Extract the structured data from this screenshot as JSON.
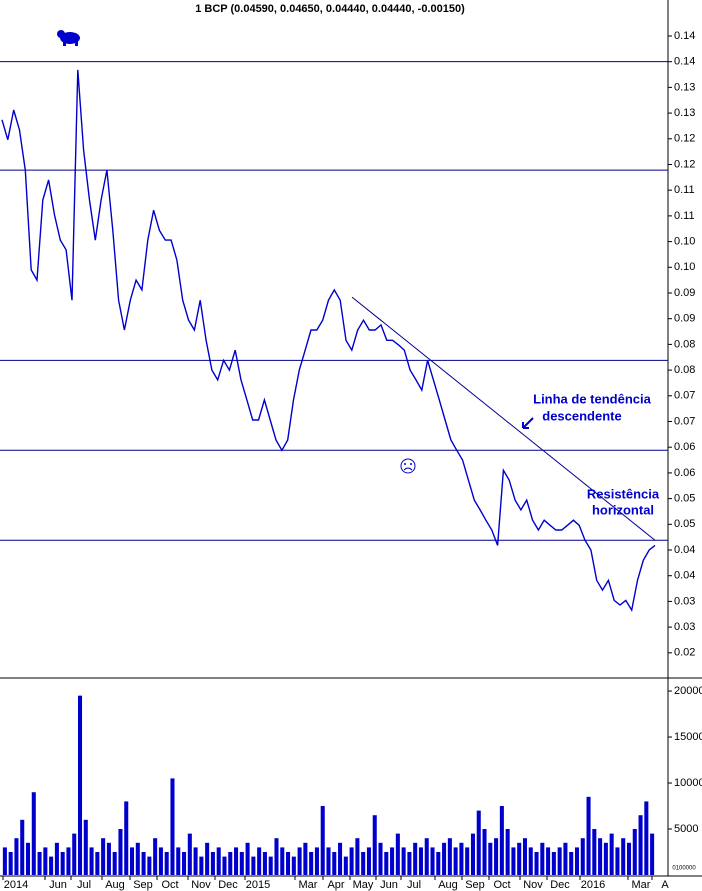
{
  "chart_data": [
    {
      "type": "line",
      "title": "1 BCP (0.04590, 0.04650, 0.04440, 0.04440, -0.00150)",
      "color": "#0000cc",
      "values": [
        0.1237,
        0.1198,
        0.1256,
        0.1217,
        0.1139,
        0.0945,
        0.0925,
        0.1081,
        0.112,
        0.1052,
        0.1003,
        0.0984,
        0.0886,
        0.1334,
        0.1178,
        0.1081,
        0.1003,
        0.1081,
        0.1139,
        0.1022,
        0.0886,
        0.0828,
        0.0886,
        0.0925,
        0.0906,
        0.1003,
        0.1061,
        0.1022,
        0.1003,
        0.1003,
        0.0964,
        0.0886,
        0.0847,
        0.0828,
        0.0886,
        0.0808,
        0.075,
        0.0731,
        0.0769,
        0.075,
        0.0789,
        0.0731,
        0.0692,
        0.0653,
        0.0653,
        0.0692,
        0.0653,
        0.0614,
        0.0594,
        0.0614,
        0.0692,
        0.075,
        0.0789,
        0.0828,
        0.0828,
        0.0847,
        0.0886,
        0.0906,
        0.0886,
        0.0808,
        0.0789,
        0.0828,
        0.0847,
        0.0828,
        0.0828,
        0.0838,
        0.0808,
        0.0808,
        0.0799,
        0.0789,
        0.075,
        0.0731,
        0.0711,
        0.0769,
        0.0731,
        0.0692,
        0.0653,
        0.0614,
        0.0594,
        0.0575,
        0.0536,
        0.0497,
        0.0478,
        0.0458,
        0.0439,
        0.0409,
        0.0555,
        0.0536,
        0.0497,
        0.0478,
        0.0497,
        0.0458,
        0.0439,
        0.0458,
        0.0448,
        0.0439,
        0.0439,
        0.0448,
        0.0458,
        0.0448,
        0.0419,
        0.04,
        0.0341,
        0.0322,
        0.0341,
        0.0302,
        0.0293,
        0.0302,
        0.0283,
        0.0341,
        0.038,
        0.04,
        0.0409
      ],
      "ylim": [
        0.0151,
        0.147
      ],
      "yticks": [
        0.02,
        {
          "value": 0.025,
          "label": "0.03"
        },
        0.03,
        {
          "value": 0.035,
          "label": "0.04"
        },
        0.04,
        {
          "value": 0.045,
          "label": "0.05"
        },
        0.05,
        {
          "value": 0.055,
          "label": "0.06"
        },
        0.06,
        {
          "value": 0.065,
          "label": "0.07"
        },
        0.07,
        {
          "value": 0.075,
          "label": "0.08"
        },
        0.08,
        {
          "value": 0.085,
          "label": "0.09"
        },
        0.09,
        {
          "value": 0.095,
          "label": "0.10"
        },
        {
          "value": 0.1,
          "label": "0.10"
        },
        {
          "value": 0.105,
          "label": "0.11"
        },
        0.11,
        {
          "value": 0.115,
          "label": "0.12"
        },
        0.12,
        {
          "value": 0.125,
          "label": "0.13"
        },
        0.13,
        {
          "value": 0.135,
          "label": "0.14"
        },
        0.14
      ],
      "hlines": [
        0.135,
        0.1139,
        0.0769,
        0.0594,
        0.0419
      ],
      "trendline": [
        0.0892,
        0.0419
      ],
      "line_color": "#00008b",
      "annotations": [
        "Linha de tendência",
        "descendente",
        "Resistência",
        "horizontal"
      ]
    },
    {
      "type": "bar",
      "color": "#0000cc",
      "values": [
        3000,
        2500,
        4000,
        6000,
        3500,
        9000,
        2500,
        3000,
        2000,
        3500,
        2500,
        3000,
        4500,
        19500,
        6000,
        3000,
        2500,
        4000,
        3500,
        2500,
        5000,
        8000,
        3000,
        3500,
        2500,
        2000,
        4000,
        3000,
        2500,
        10500,
        3000,
        2500,
        4500,
        3000,
        2000,
        3500,
        2500,
        3000,
        2000,
        2500,
        3000,
        2500,
        3500,
        2000,
        3000,
        2500,
        2000,
        4000,
        3000,
        2500,
        2000,
        3000,
        3500,
        2500,
        3000,
        7500,
        3000,
        2500,
        3500,
        2000,
        3000,
        4000,
        2500,
        3000,
        6500,
        3500,
        2500,
        3000,
        4500,
        3000,
        2500,
        3500,
        3000,
        4000,
        3000,
        2500,
        3500,
        4000,
        3000,
        3500,
        3000,
        4500,
        7000,
        5000,
        3500,
        4000,
        7500,
        5000,
        3000,
        3500,
        4000,
        3000,
        2500,
        3500,
        3000,
        2500,
        3000,
        3500,
        2500,
        3000,
        4000,
        8500,
        5000,
        4000,
        3500,
        4500,
        3000,
        4000,
        3500,
        5000,
        6500,
        8000,
        4500
      ],
      "ylim": [
        0,
        21200
      ],
      "yticks": [
        5000,
        10000,
        15000,
        20000
      ],
      "xticks": [
        "2014",
        "Jun",
        "Jul",
        "Aug",
        "Sep",
        "Oct",
        "Nov",
        "Dec",
        "2015",
        "Mar",
        "Apr",
        "May",
        "Jun",
        "Jul",
        "Aug",
        "Sep",
        "Oct",
        "Nov",
        "Dec",
        "2016",
        "Mar",
        "A"
      ],
      "scale_label": "0100000"
    }
  ]
}
